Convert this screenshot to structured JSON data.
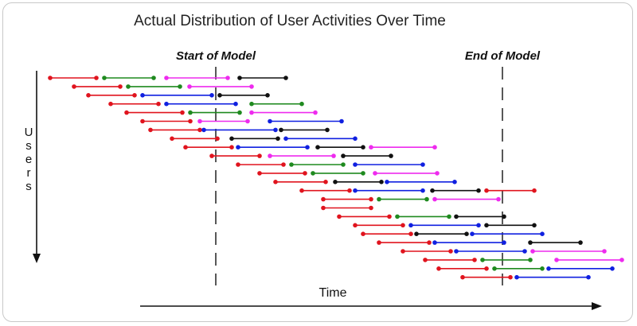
{
  "title": "Actual Distribution of User Activities Over Time",
  "markers": {
    "start": "Start of Model",
    "end": "End of Model"
  },
  "axes": {
    "y_label_letters": [
      "U",
      "s",
      "e",
      "r",
      "s"
    ],
    "x_label": "Time"
  },
  "colors": {
    "red": "#e0141e",
    "green": "#1f8a1f",
    "magenta": "#ee2bee",
    "black": "#111111",
    "blue": "#1020e0"
  },
  "chart_data": {
    "type": "gantt",
    "rows": [
      [
        [
          "red",
          62,
          120
        ],
        [
          "green",
          130,
          192
        ],
        [
          "magenta",
          208,
          285
        ],
        [
          "black",
          300,
          358
        ]
      ],
      [
        [
          "red",
          92,
          150
        ],
        [
          "green",
          160,
          225
        ],
        [
          "magenta",
          237,
          315
        ]
      ],
      [
        [
          "red",
          110,
          168
        ],
        [
          "blue",
          178,
          265
        ],
        [
          "black",
          275,
          335
        ]
      ],
      [
        [
          "red",
          138,
          198
        ],
        [
          "blue",
          208,
          295
        ],
        [
          "green",
          315,
          378
        ]
      ],
      [
        [
          "red",
          158,
          228
        ],
        [
          "green",
          238,
          300
        ],
        [
          "magenta",
          315,
          395
        ]
      ],
      [
        [
          "red",
          178,
          238
        ],
        [
          "magenta",
          250,
          310
        ],
        [
          "blue",
          338,
          428
        ]
      ],
      [
        [
          "red",
          188,
          250
        ],
        [
          "blue",
          255,
          345
        ],
        [
          "black",
          352,
          410
        ]
      ],
      [
        [
          "red",
          215,
          272
        ],
        [
          "black",
          290,
          348
        ],
        [
          "blue",
          358,
          445
        ]
      ],
      [
        [
          "red",
          232,
          290
        ],
        [
          "blue",
          298,
          385
        ],
        [
          "black",
          398,
          455
        ],
        [
          "magenta",
          465,
          545
        ]
      ],
      [
        [
          "red",
          265,
          325
        ],
        [
          "magenta",
          338,
          418
        ],
        [
          "black",
          430,
          490
        ]
      ],
      [
        [
          "red",
          298,
          355
        ],
        [
          "green",
          365,
          430
        ],
        [
          "blue",
          445,
          530
        ]
      ],
      [
        [
          "red",
          325,
          382
        ],
        [
          "green",
          392,
          455
        ],
        [
          "magenta",
          470,
          548
        ]
      ],
      [
        [
          "red",
          345,
          408
        ],
        [
          "black",
          420,
          478
        ],
        [
          "blue",
          485,
          570
        ]
      ],
      [
        [
          "red",
          378,
          438
        ],
        [
          "blue",
          445,
          530
        ],
        [
          "black",
          542,
          600
        ],
        [
          "red",
          610,
          670
        ]
      ],
      [
        [
          "red",
          405,
          465
        ],
        [
          "green",
          475,
          535
        ],
        [
          "magenta",
          545,
          625
        ]
      ],
      [
        [
          "red",
          405,
          465
        ]
      ],
      [
        [
          "red",
          425,
          488
        ],
        [
          "green",
          498,
          563
        ],
        [
          "black",
          572,
          632
        ]
      ],
      [
        [
          "red",
          445,
          505
        ],
        [
          "blue",
          515,
          600
        ],
        [
          "black",
          610,
          670
        ]
      ],
      [
        [
          "red",
          455,
          515
        ],
        [
          "black",
          522,
          585
        ],
        [
          "blue",
          592,
          680
        ]
      ],
      [
        [
          "red",
          475,
          538
        ],
        [
          "blue",
          545,
          632
        ],
        [
          "black",
          665,
          728
        ]
      ],
      [
        [
          "red",
          505,
          565
        ],
        [
          "blue",
          572,
          658
        ],
        [
          "magenta",
          668,
          758
        ]
      ],
      [
        [
          "red",
          533,
          595
        ],
        [
          "green",
          605,
          665
        ],
        [
          "magenta",
          698,
          780
        ]
      ],
      [
        [
          "red",
          550,
          610
        ],
        [
          "green",
          620,
          680
        ],
        [
          "blue",
          688,
          768
        ]
      ],
      [
        [
          "red",
          580,
          640
        ],
        [
          "blue",
          648,
          738
        ]
      ]
    ],
    "markers_x": [
      270,
      630
    ]
  }
}
